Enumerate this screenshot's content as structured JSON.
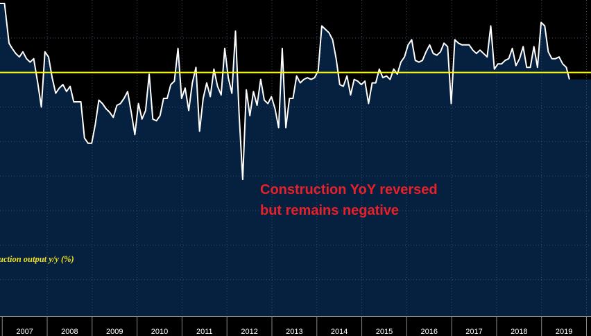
{
  "chart_data": {
    "type": "area",
    "title": "",
    "xlabel": "",
    "ylabel": "",
    "legend": {
      "label": "uction output y/y (%)",
      "placement": "bottom-left",
      "color": "#f0e020"
    },
    "annotation": {
      "lines": [
        "Construction YoY reversed",
        "but remains negative"
      ],
      "color": "#e8202a"
    },
    "reference_line": {
      "value": 0,
      "color": "#ffff00"
    },
    "colors": {
      "background": "#000000",
      "fill": "#06203f",
      "line": "#ffffff",
      "grid": "#3a4f6e",
      "axis_text": "#ffffff"
    },
    "x_ticks": [
      "2007",
      "2008",
      "2009",
      "2010",
      "2011",
      "2012",
      "2013",
      "2014",
      "2015",
      "2016",
      "2017",
      "2018",
      "2019"
    ],
    "xlim": [
      2006.45,
      2019.6
    ],
    "ylim": [
      -14.1,
      4.2
    ],
    "grid": true,
    "series": [
      {
        "values": [
          [
            2006.45,
            4.0
          ],
          [
            2006.55,
            4.0
          ],
          [
            2006.65,
            1.7
          ],
          [
            2006.72,
            1.4
          ],
          [
            2006.8,
            1.1
          ],
          [
            2006.88,
            0.9
          ],
          [
            2006.96,
            1.2
          ],
          [
            2007.04,
            0.8
          ],
          [
            2007.12,
            0.6
          ],
          [
            2007.2,
            0.8
          ],
          [
            2007.29,
            -0.6
          ],
          [
            2007.37,
            -2.0
          ],
          [
            2007.45,
            1.2
          ],
          [
            2007.53,
            0.9
          ],
          [
            2007.61,
            -0.3
          ],
          [
            2007.69,
            -1.2
          ],
          [
            2007.77,
            -0.9
          ],
          [
            2007.85,
            -0.7
          ],
          [
            2007.93,
            -1.1
          ],
          [
            2008.01,
            -0.8
          ],
          [
            2008.09,
            -1.7
          ],
          [
            2008.17,
            -1.7
          ],
          [
            2008.25,
            -1.7
          ],
          [
            2008.33,
            -3.8
          ],
          [
            2008.41,
            -4.1
          ],
          [
            2008.49,
            -4.1
          ],
          [
            2008.57,
            -3.0
          ],
          [
            2008.65,
            -1.6
          ],
          [
            2008.73,
            -1.8
          ],
          [
            2008.81,
            -2.1
          ],
          [
            2008.89,
            -2.3
          ],
          [
            2008.97,
            -2.6
          ],
          [
            2009.05,
            -1.9
          ],
          [
            2009.13,
            -1.8
          ],
          [
            2009.21,
            -1.5
          ],
          [
            2009.29,
            -1.1
          ],
          [
            2009.37,
            -2.3
          ],
          [
            2009.45,
            -3.6
          ],
          [
            2009.53,
            -1.8
          ],
          [
            2009.61,
            -2.7
          ],
          [
            2009.69,
            -2.2
          ],
          [
            2009.77,
            -0.1
          ],
          [
            2009.85,
            -2.7
          ],
          [
            2009.93,
            -2.8
          ],
          [
            2010.01,
            -2.5
          ],
          [
            2010.09,
            -1.5
          ],
          [
            2010.17,
            -1.5
          ],
          [
            2010.25,
            -0.7
          ],
          [
            2010.33,
            -0.5
          ],
          [
            2010.41,
            1.4
          ],
          [
            2010.49,
            -1.5
          ],
          [
            2010.57,
            -0.9
          ],
          [
            2010.65,
            -2.2
          ],
          [
            2010.73,
            -0.6
          ],
          [
            2010.81,
            0.3
          ],
          [
            2010.89,
            -3.4
          ],
          [
            2010.97,
            -1.5
          ],
          [
            2011.05,
            -0.6
          ],
          [
            2011.13,
            -1.4
          ],
          [
            2011.21,
            0.2
          ],
          [
            2011.29,
            -0.8
          ],
          [
            2011.37,
            -1.3
          ],
          [
            2011.45,
            1.4
          ],
          [
            2011.53,
            -0.3
          ],
          [
            2011.61,
            -1.2
          ],
          [
            2011.69,
            2.4
          ],
          [
            2011.77,
            -2.4
          ],
          [
            2011.85,
            -6.2
          ],
          [
            2011.93,
            -1.0
          ],
          [
            2012.01,
            -2.5
          ],
          [
            2012.09,
            -1.1
          ],
          [
            2012.17,
            -1.9
          ],
          [
            2012.25,
            -0.4
          ],
          [
            2012.33,
            -1.6
          ],
          [
            2012.41,
            -1.8
          ],
          [
            2012.49,
            -1.4
          ],
          [
            2012.57,
            -2.1
          ],
          [
            2012.65,
            -3.2
          ],
          [
            2012.73,
            1.4
          ],
          [
            2012.81,
            -3.2
          ],
          [
            2012.89,
            -1.5
          ],
          [
            2012.97,
            -1.5
          ],
          [
            2013.05,
            -0.2
          ],
          [
            2013.13,
            -0.6
          ],
          [
            2013.21,
            -0.4
          ],
          [
            2013.29,
            -0.3
          ],
          [
            2013.37,
            -0.4
          ],
          [
            2013.45,
            -0.3
          ],
          [
            2013.53,
            0.1
          ],
          [
            2013.61,
            2.7
          ],
          [
            2013.69,
            2.5
          ],
          [
            2013.77,
            2.3
          ],
          [
            2013.85,
            1.9
          ],
          [
            2013.93,
            0.8
          ],
          [
            2014.01,
            -0.7
          ],
          [
            2014.09,
            -0.8
          ],
          [
            2014.17,
            -0.2
          ],
          [
            2014.25,
            -1.3
          ],
          [
            2014.33,
            -0.4
          ],
          [
            2014.41,
            -0.5
          ],
          [
            2014.49,
            -0.7
          ],
          [
            2014.57,
            -0.5
          ],
          [
            2014.65,
            -1.8
          ],
          [
            2014.73,
            -0.6
          ],
          [
            2014.81,
            -0.6
          ],
          [
            2014.89,
            0.2
          ],
          [
            2014.97,
            -0.3
          ],
          [
            2015.05,
            -0.2
          ],
          [
            2015.13,
            -0.4
          ],
          [
            2015.21,
            0.2
          ],
          [
            2015.29,
            -0.1
          ],
          [
            2015.37,
            0.6
          ],
          [
            2015.45,
            0.9
          ],
          [
            2015.53,
            1.6
          ],
          [
            2015.61,
            1.9
          ],
          [
            2015.69,
            0.7
          ],
          [
            2015.77,
            0.6
          ],
          [
            2015.85,
            0.7
          ],
          [
            2015.93,
            1.2
          ],
          [
            2016.01,
            1.6
          ],
          [
            2016.09,
            1.1
          ],
          [
            2016.17,
            1.0
          ],
          [
            2016.25,
            1.2
          ],
          [
            2016.33,
            1.7
          ],
          [
            2016.41,
            1.5
          ],
          [
            2016.49,
            -1.8
          ],
          [
            2016.57,
            1.9
          ],
          [
            2016.65,
            1.7
          ],
          [
            2016.73,
            1.6
          ],
          [
            2016.81,
            1.6
          ],
          [
            2016.89,
            1.6
          ],
          [
            2016.97,
            1.3
          ],
          [
            2017.05,
            1.1
          ],
          [
            2017.13,
            1.3
          ],
          [
            2017.21,
            1.1
          ],
          [
            2017.29,
            0.9
          ],
          [
            2017.37,
            2.7
          ],
          [
            2017.45,
            0.2
          ],
          [
            2017.53,
            0.5
          ],
          [
            2017.61,
            0.5
          ],
          [
            2017.69,
            0.7
          ],
          [
            2017.77,
            0.8
          ],
          [
            2017.85,
            1.4
          ],
          [
            2017.93,
            0.4
          ],
          [
            2018.01,
            0.8
          ],
          [
            2018.09,
            1.5
          ],
          [
            2018.17,
            0.3
          ],
          [
            2018.25,
            0.3
          ],
          [
            2018.33,
            1.5
          ],
          [
            2018.41,
            0.3
          ],
          [
            2018.49,
            2.9
          ],
          [
            2018.57,
            2.7
          ],
          [
            2018.65,
            1.2
          ],
          [
            2018.73,
            0.8
          ],
          [
            2018.81,
            0.8
          ],
          [
            2018.89,
            0.9
          ],
          [
            2018.97,
            0.5
          ],
          [
            2019.05,
            0.3
          ],
          [
            2019.12,
            -0.4
          ]
        ]
      }
    ]
  }
}
